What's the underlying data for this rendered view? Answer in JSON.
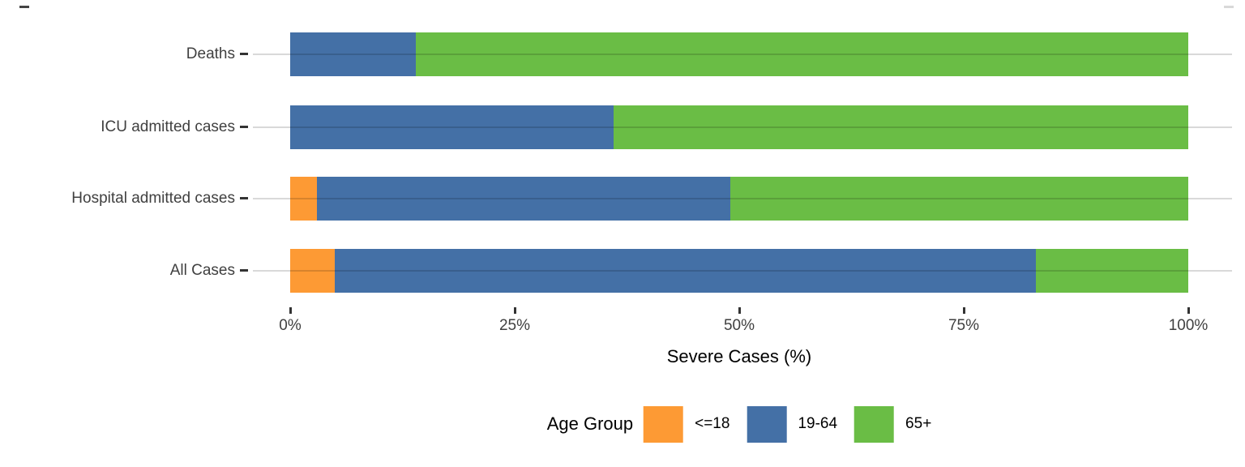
{
  "chart_data": {
    "type": "bar",
    "orientation": "horizontal",
    "stacked": true,
    "stack_total_percent": 100,
    "title": "",
    "xlabel": "Severe Cases (%)",
    "ylabel": "",
    "xlim": [
      0,
      100
    ],
    "grid": "horizontal-major-only",
    "categories": [
      "Deaths",
      "ICU admitted cases",
      "Hospital admitted cases",
      "All Cases"
    ],
    "series": [
      {
        "name": "<=18",
        "color": "#FD9A34",
        "values": [
          0,
          0,
          3,
          5
        ]
      },
      {
        "name": "19-64",
        "color": "#4470A6",
        "values": [
          14,
          36,
          46,
          78
        ]
      },
      {
        "name": "65+",
        "color": "#6ABD45",
        "values": [
          86,
          64,
          51,
          17
        ]
      }
    ],
    "x_ticks": [
      {
        "label": "0%",
        "value": 0
      },
      {
        "label": "25%",
        "value": 25
      },
      {
        "label": "50%",
        "value": 50
      },
      {
        "label": "75%",
        "value": 75
      },
      {
        "label": "100%",
        "value": 100
      }
    ],
    "legend": {
      "title": "Age Group",
      "position": "bottom",
      "entries": [
        "<=18",
        "19-64",
        "65+"
      ]
    }
  },
  "colors": {
    "background": "#FFFFFF",
    "gridline_on_white": "#D9D9D9",
    "axis_text": "#404040",
    "axis_title_text": "#000000",
    "tick_mark": "#333333"
  }
}
